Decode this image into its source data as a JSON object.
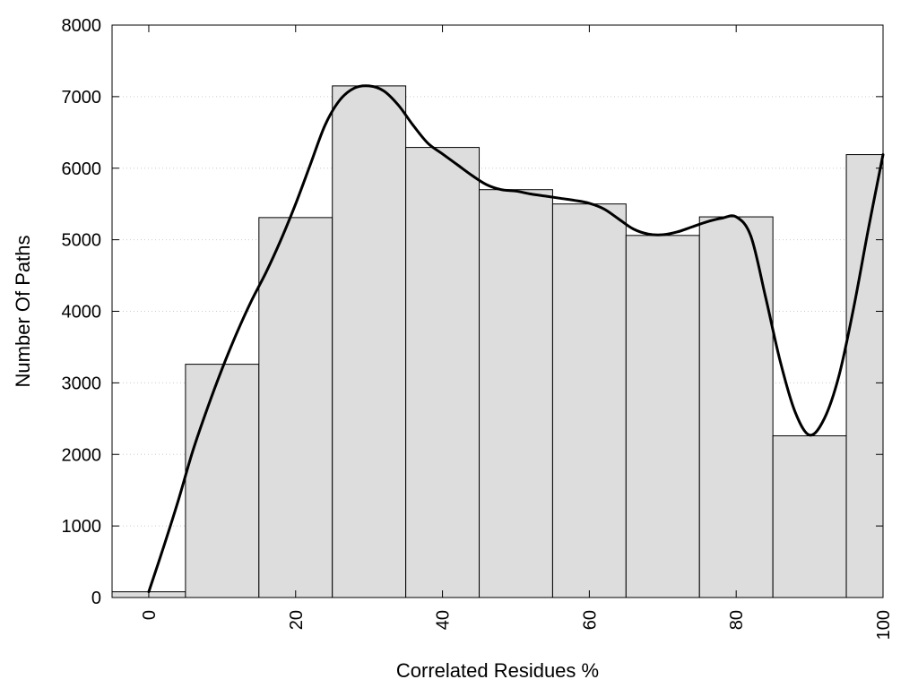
{
  "chart_data": {
    "type": "bar",
    "title": "",
    "xlabel": "Correlated Residues %",
    "ylabel": "Number Of Paths",
    "xlim": [
      -5,
      100
    ],
    "ylim": [
      0,
      8000
    ],
    "x_ticks": [
      0,
      20,
      40,
      60,
      80,
      100
    ],
    "y_ticks": [
      0,
      1000,
      2000,
      3000,
      4000,
      5000,
      6000,
      7000,
      8000
    ],
    "bin_width": 10,
    "bars": [
      {
        "x": 0,
        "value": 80
      },
      {
        "x": 10,
        "value": 3260
      },
      {
        "x": 20,
        "value": 5310
      },
      {
        "x": 30,
        "value": 7150
      },
      {
        "x": 40,
        "value": 6290
      },
      {
        "x": 50,
        "value": 5700
      },
      {
        "x": 60,
        "value": 5500
      },
      {
        "x": 70,
        "value": 5060
      },
      {
        "x": 80,
        "value": 5320
      },
      {
        "x": 90,
        "value": 2260
      },
      {
        "x": 100,
        "value": 6190
      }
    ],
    "curve": {
      "x": [
        0,
        2,
        4,
        6,
        8,
        10,
        12,
        14,
        16,
        18,
        20,
        22,
        24,
        26,
        28,
        30,
        32,
        34,
        36,
        38,
        40,
        42,
        44,
        46,
        48,
        50,
        52,
        54,
        56,
        58,
        60,
        62,
        64,
        66,
        68,
        70,
        72,
        74,
        76,
        78,
        80,
        82,
        84,
        86,
        88,
        90,
        92,
        94,
        96,
        98,
        100
      ],
      "y": [
        80,
        700,
        1350,
        2050,
        2650,
        3200,
        3700,
        4150,
        4550,
        5000,
        5500,
        6050,
        6600,
        6950,
        7120,
        7150,
        7080,
        6880,
        6600,
        6350,
        6200,
        6050,
        5900,
        5770,
        5700,
        5680,
        5640,
        5610,
        5580,
        5550,
        5510,
        5430,
        5290,
        5150,
        5080,
        5070,
        5110,
        5180,
        5250,
        5300,
        5320,
        5050,
        4200,
        3300,
        2600,
        2270,
        2500,
        3100,
        4050,
        5150,
        6190
      ]
    },
    "grid": "horizontal-dotted",
    "legend": "none",
    "colors": {
      "bar_fill": "#dddddd",
      "bar_stroke": "#000000",
      "curve": "#000000",
      "grid": "#cccccc"
    }
  }
}
